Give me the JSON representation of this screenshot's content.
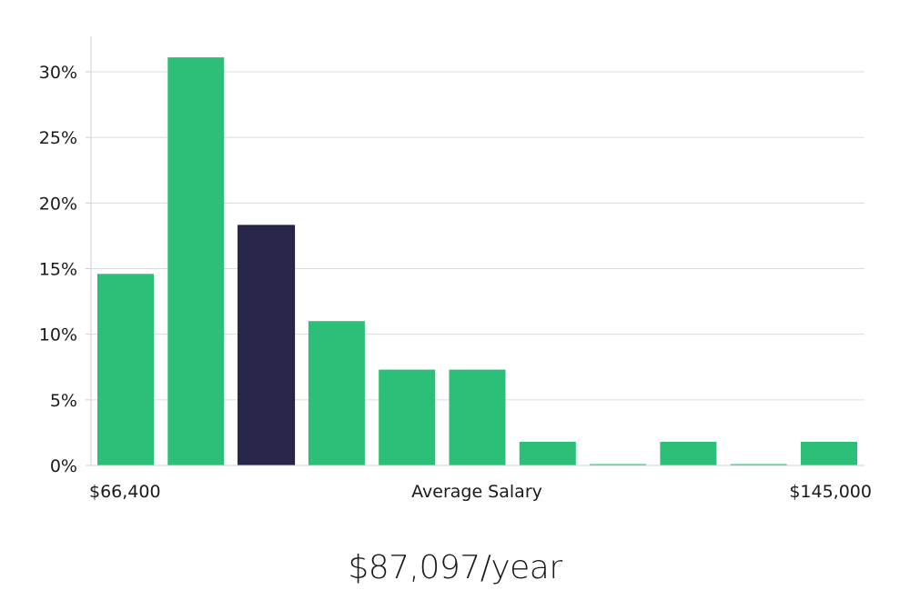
{
  "chart_data": {
    "type": "bar",
    "xlabel": "Average Salary",
    "x_min_label": "$66,400",
    "x_max_label": "$145,000",
    "y_ticks": [
      "0%",
      "5%",
      "10%",
      "15%",
      "20%",
      "25%",
      "30%"
    ],
    "y_tick_values": [
      0,
      5,
      10,
      15,
      20,
      25,
      30
    ],
    "ylim": [
      0,
      33
    ],
    "values": [
      14.6,
      31.1,
      18.3,
      11.0,
      7.3,
      7.3,
      1.8,
      0,
      1.8,
      0,
      1.8
    ],
    "highlight_index": 2,
    "grid": true,
    "colors": {
      "bar": "#2bbf78",
      "highlight": "#28264a",
      "grid": "#dcdcdc",
      "axis": "#d0d0d0",
      "text": "#1a1a1a"
    }
  },
  "summary": {
    "average_salary": "$87,097/year"
  }
}
